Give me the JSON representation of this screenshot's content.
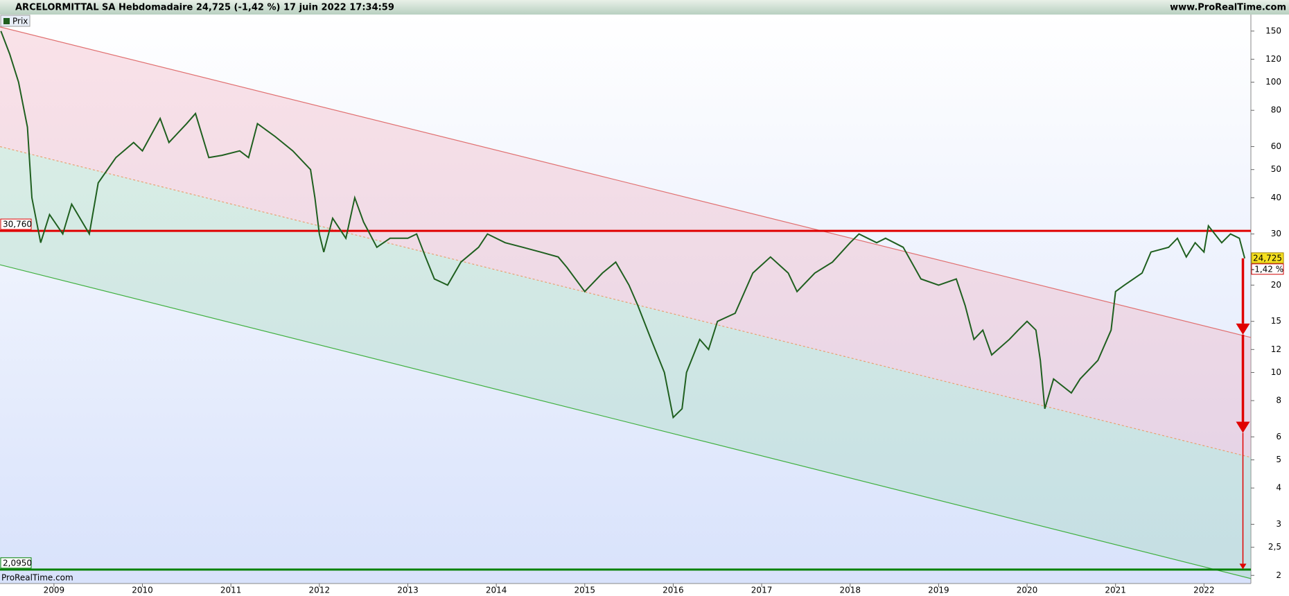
{
  "chart_data": {
    "type": "line",
    "title": "ARCELORMITTAL SA Hebdomadaire 24,725 (-1,42 %) 17 juin 2022 17:34:59",
    "site": "www.ProRealTime.com",
    "watermark": "ProRealTime.com",
    "log_scale": true,
    "xlim": [
      2008.39,
      2022.53
    ],
    "xticks": [
      2009,
      2010,
      2011,
      2012,
      2013,
      2014,
      2015,
      2016,
      2017,
      2018,
      2019,
      2020,
      2021,
      2022
    ],
    "ylim": [
      1.875,
      171
    ],
    "yticks": [
      2,
      {
        "value": 2.5,
        "label": "2,5"
      },
      3,
      4,
      5,
      6,
      8,
      10,
      12,
      15,
      20,
      30,
      40,
      50,
      60,
      80,
      100,
      120,
      150
    ],
    "series": [
      {
        "name": "Prix",
        "color": "#1f5f1f",
        "x": [
          2008.4,
          2008.5,
          2008.6,
          2008.7,
          2008.75,
          2008.85,
          2008.95,
          2009.1,
          2009.2,
          2009.4,
          2009.5,
          2009.7,
          2009.9,
          2010.0,
          2010.2,
          2010.3,
          2010.5,
          2010.6,
          2010.75,
          2010.9,
          2011.1,
          2011.2,
          2011.3,
          2011.5,
          2011.7,
          2011.9,
          2011.95,
          2012.0,
          2012.05,
          2012.15,
          2012.3,
          2012.4,
          2012.5,
          2012.65,
          2012.8,
          2012.9,
          2013.0,
          2013.1,
          2013.2,
          2013.3,
          2013.45,
          2013.6,
          2013.8,
          2013.9,
          2014.1,
          2014.3,
          2014.5,
          2014.7,
          2014.8,
          2015.0,
          2015.2,
          2015.35,
          2015.5,
          2015.6,
          2015.75,
          2015.9,
          2016.0,
          2016.1,
          2016.15,
          2016.3,
          2016.4,
          2016.5,
          2016.7,
          2016.9,
          2017.1,
          2017.3,
          2017.4,
          2017.6,
          2017.8,
          2018.0,
          2018.1,
          2018.3,
          2018.4,
          2018.6,
          2018.8,
          2019.0,
          2019.2,
          2019.3,
          2019.4,
          2019.5,
          2019.6,
          2019.8,
          2019.9,
          2020.0,
          2020.1,
          2020.15,
          2020.2,
          2020.3,
          2020.5,
          2020.6,
          2020.8,
          2020.95,
          2021.0,
          2021.1,
          2021.3,
          2021.4,
          2021.6,
          2021.7,
          2021.8,
          2021.9,
          2022.0,
          2022.05,
          2022.2,
          2022.3,
          2022.4,
          2022.46
        ],
        "values": [
          150,
          125,
          100,
          70,
          40,
          28,
          35,
          30,
          38,
          30,
          45,
          55,
          62,
          58,
          75,
          62,
          72,
          78,
          55,
          56,
          58,
          55,
          72,
          65,
          58,
          50,
          40,
          30,
          26,
          34,
          29,
          40,
          33,
          27,
          29,
          29,
          29,
          30,
          25,
          21,
          20,
          24,
          27,
          30,
          28,
          27,
          26,
          25,
          23,
          19,
          22,
          24,
          20,
          17,
          13,
          10,
          7,
          7.5,
          10,
          13,
          12,
          15,
          16,
          22,
          25,
          22,
          19,
          22,
          24,
          28,
          30,
          28,
          29,
          27,
          21,
          20,
          21,
          17,
          13,
          14,
          11.5,
          13,
          14,
          15,
          14,
          11,
          7.5,
          9.5,
          8.5,
          9.5,
          11,
          14,
          19,
          20,
          22,
          26,
          27,
          29,
          25,
          28,
          26,
          32,
          28,
          30,
          29,
          24.725
        ]
      }
    ],
    "channel_upper": {
      "color": "#e07070",
      "x": [
        2008.39,
        2022.53
      ],
      "values": [
        155,
        13.2
      ]
    },
    "channel_mid": {
      "color": "#e8a070",
      "x": [
        2008.39,
        2022.53
      ],
      "values": [
        60,
        5.1
      ]
    },
    "channel_lower": {
      "color": "#40b040",
      "x": [
        2008.39,
        2022.53
      ],
      "values": [
        23.5,
        1.95
      ]
    },
    "hlines": [
      {
        "value": 30.76,
        "label": "30,760",
        "color": "#e00000"
      },
      {
        "value": 2.095,
        "label": "2,0950",
        "color": "#008000"
      }
    ],
    "last": {
      "value": 24.725,
      "label": "24,725"
    },
    "change": {
      "value": -1.42,
      "label": "-1,42 %"
    },
    "arrow_x": 2022.44,
    "arrows": [
      {
        "from": 24.725,
        "to": 13.5
      },
      {
        "from": 13.5,
        "to": 6.2
      },
      {
        "from": 6.2,
        "to": 2.1
      }
    ]
  }
}
